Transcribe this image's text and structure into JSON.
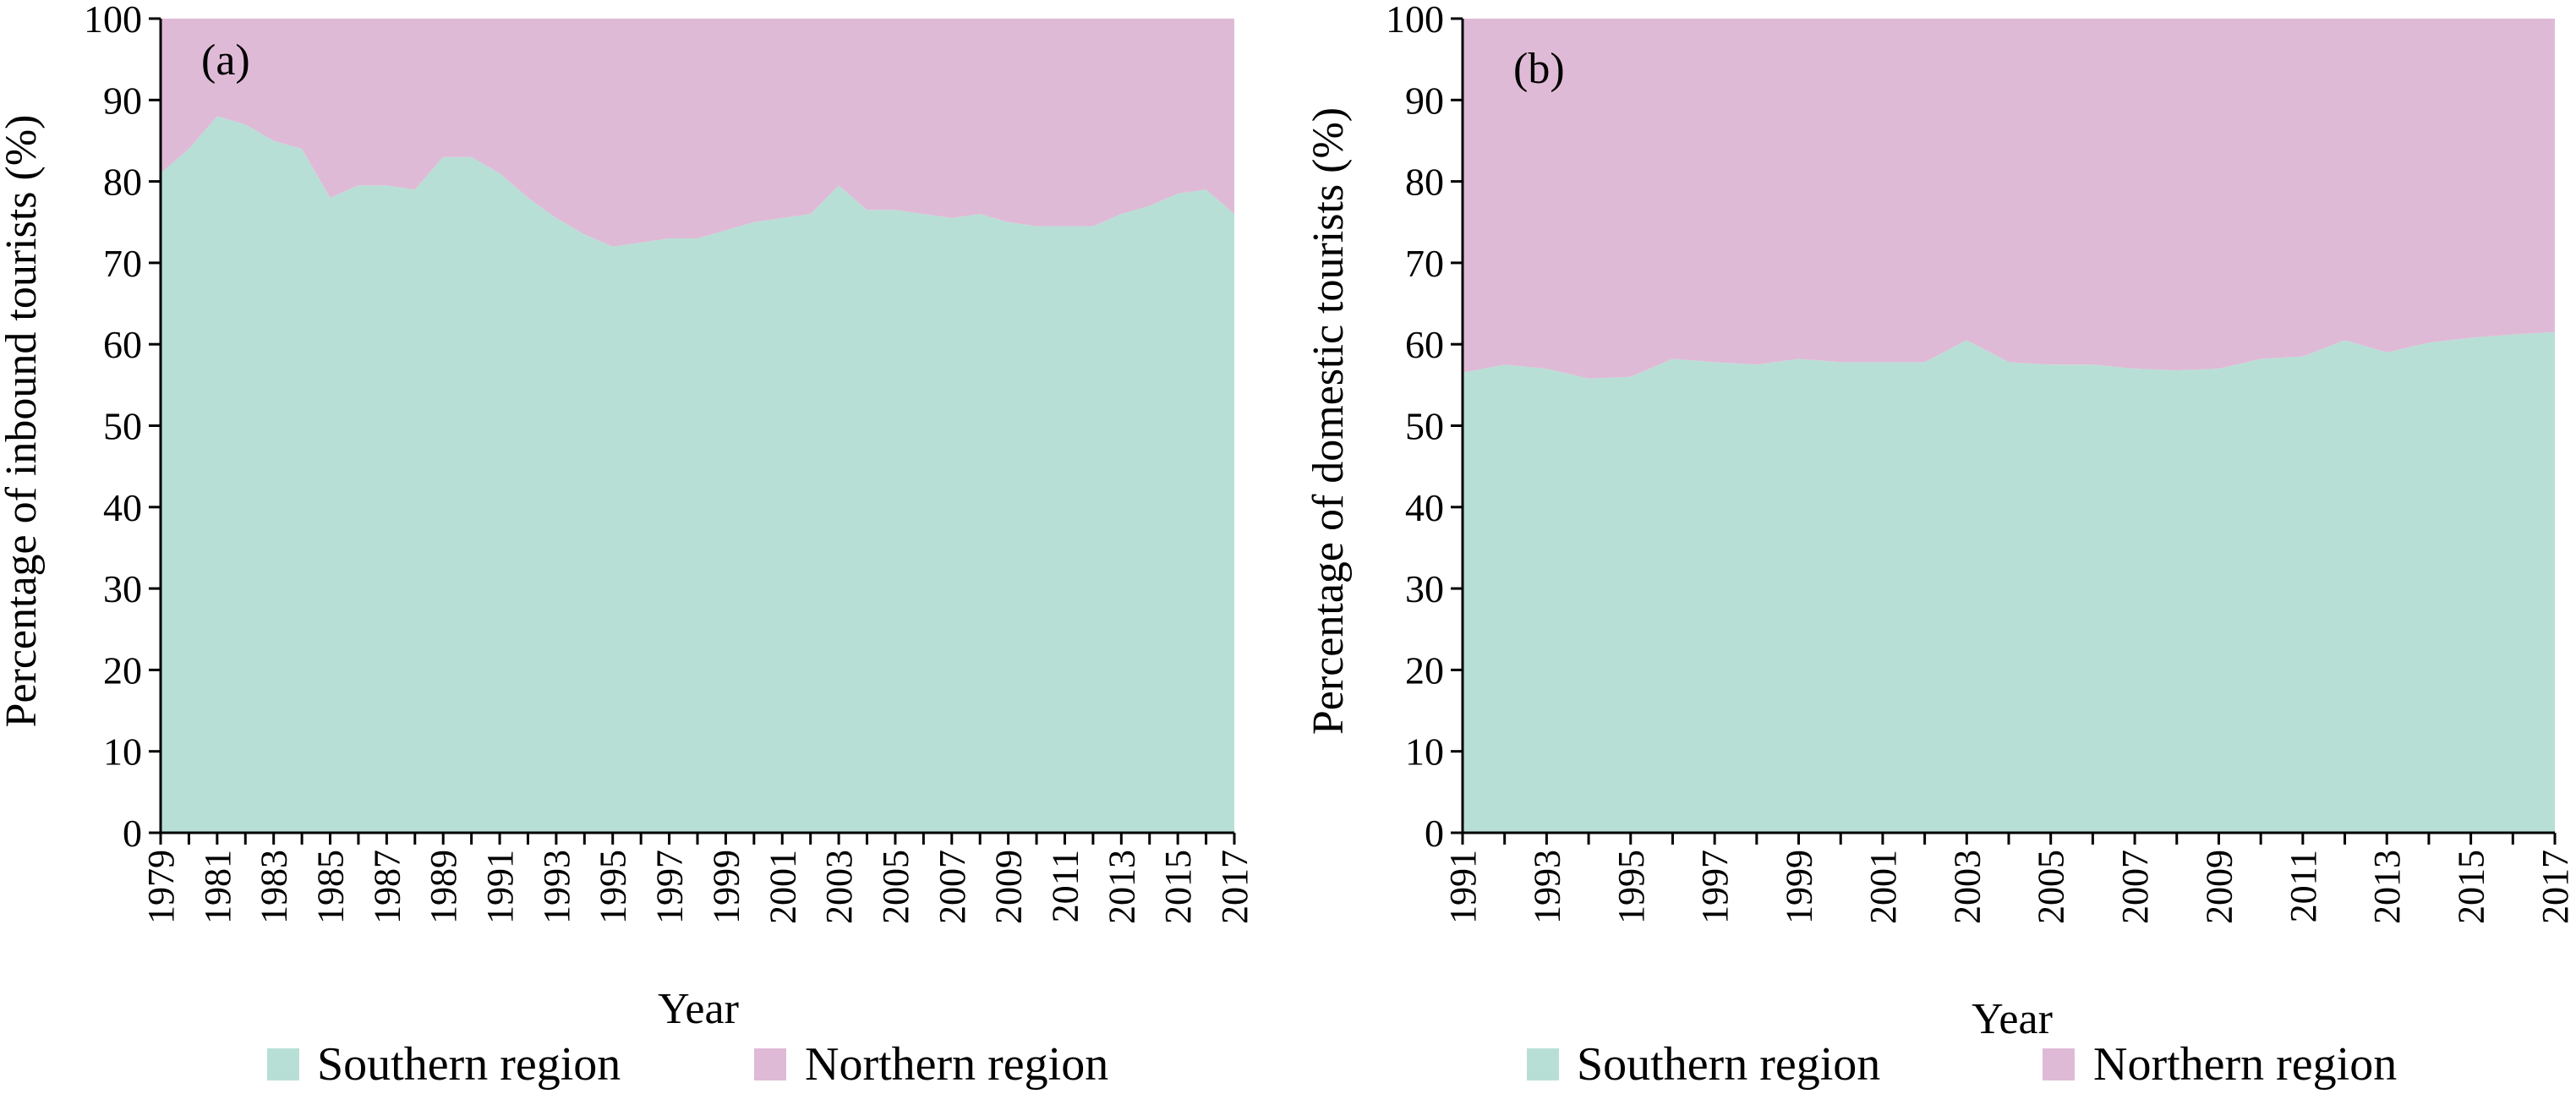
{
  "chart_data": [
    {
      "type": "area",
      "stacked": true,
      "panel_label": "(a)",
      "xlabel": "Year",
      "ylabel": "Percentage of inbound tourists (%)",
      "ylim": [
        0,
        100
      ],
      "yticks": [
        0,
        10,
        20,
        30,
        40,
        50,
        60,
        70,
        80,
        90,
        100
      ],
      "xlim": [
        1979,
        2017
      ],
      "xticks": [
        1979,
        1981,
        1983,
        1985,
        1987,
        1989,
        1991,
        1993,
        1995,
        1997,
        1999,
        2001,
        2003,
        2005,
        2007,
        2009,
        2011,
        2013,
        2015,
        2017
      ],
      "x": [
        1979,
        1980,
        1981,
        1982,
        1983,
        1984,
        1985,
        1986,
        1987,
        1988,
        1989,
        1990,
        1991,
        1992,
        1993,
        1994,
        1995,
        1996,
        1997,
        1998,
        1999,
        2000,
        2001,
        2002,
        2003,
        2004,
        2005,
        2006,
        2007,
        2008,
        2009,
        2010,
        2011,
        2012,
        2013,
        2014,
        2015,
        2016,
        2017
      ],
      "series": [
        {
          "name": "Southern region",
          "color": "#b8dfd6",
          "values": [
            81,
            84,
            88,
            87,
            85,
            84,
            78,
            79.5,
            79.5,
            79,
            83,
            83,
            81,
            78,
            75.5,
            73.5,
            72,
            72.5,
            73,
            73,
            74,
            75,
            75.5,
            76,
            79.5,
            76.5,
            76.5,
            76,
            75.5,
            76,
            75,
            74.5,
            74.5,
            74.5,
            76,
            77,
            78.5,
            79,
            76
          ]
        },
        {
          "name": "Northern region",
          "color": "#dfbad6",
          "values": [
            19,
            16,
            12,
            13,
            15,
            16,
            22,
            20.5,
            20.5,
            21,
            17,
            17,
            19,
            22,
            24.5,
            26.5,
            28,
            27.5,
            27,
            27,
            26,
            25,
            24.5,
            24,
            20.5,
            23.5,
            23.5,
            24,
            24.5,
            24,
            25,
            25.5,
            25.5,
            25.5,
            24,
            23,
            21.5,
            21,
            24
          ]
        }
      ],
      "legend": "bottom"
    },
    {
      "type": "area",
      "stacked": true,
      "panel_label": "(b)",
      "xlabel": "Year",
      "ylabel": "Percentage of domestic tourists (%)",
      "ylim": [
        0,
        100
      ],
      "yticks": [
        0,
        10,
        20,
        30,
        40,
        50,
        60,
        70,
        80,
        90,
        100
      ],
      "xlim": [
        1991,
        2017
      ],
      "xticks": [
        1991,
        1993,
        1995,
        1997,
        1999,
        2001,
        2003,
        2005,
        2007,
        2009,
        2011,
        2013,
        2015,
        2017
      ],
      "x": [
        1991,
        1992,
        1993,
        1994,
        1995,
        1996,
        1997,
        1998,
        1999,
        2000,
        2001,
        2002,
        2003,
        2004,
        2005,
        2006,
        2007,
        2008,
        2009,
        2010,
        2011,
        2012,
        2013,
        2014,
        2015,
        2016,
        2017
      ],
      "series": [
        {
          "name": "Southern region",
          "color": "#b8dfd6",
          "values": [
            56.5,
            57.5,
            57,
            55.8,
            56,
            58.2,
            57.8,
            57.5,
            58.2,
            57.8,
            57.8,
            57.8,
            60.5,
            57.8,
            57.5,
            57.5,
            57,
            56.8,
            57,
            58.2,
            58.5,
            60.5,
            59,
            60.2,
            60.8,
            61.2,
            61.5
          ]
        },
        {
          "name": "Northern region",
          "color": "#dfbad6",
          "values": [
            43.5,
            42.5,
            43,
            44.2,
            44,
            41.8,
            42.2,
            42.5,
            41.8,
            42.2,
            42.2,
            42.2,
            39.5,
            42.2,
            42.5,
            42.5,
            43,
            43.2,
            43,
            41.8,
            41.5,
            39.5,
            41,
            39.8,
            39.2,
            38.8,
            38.5
          ]
        }
      ],
      "legend": "bottom"
    }
  ]
}
